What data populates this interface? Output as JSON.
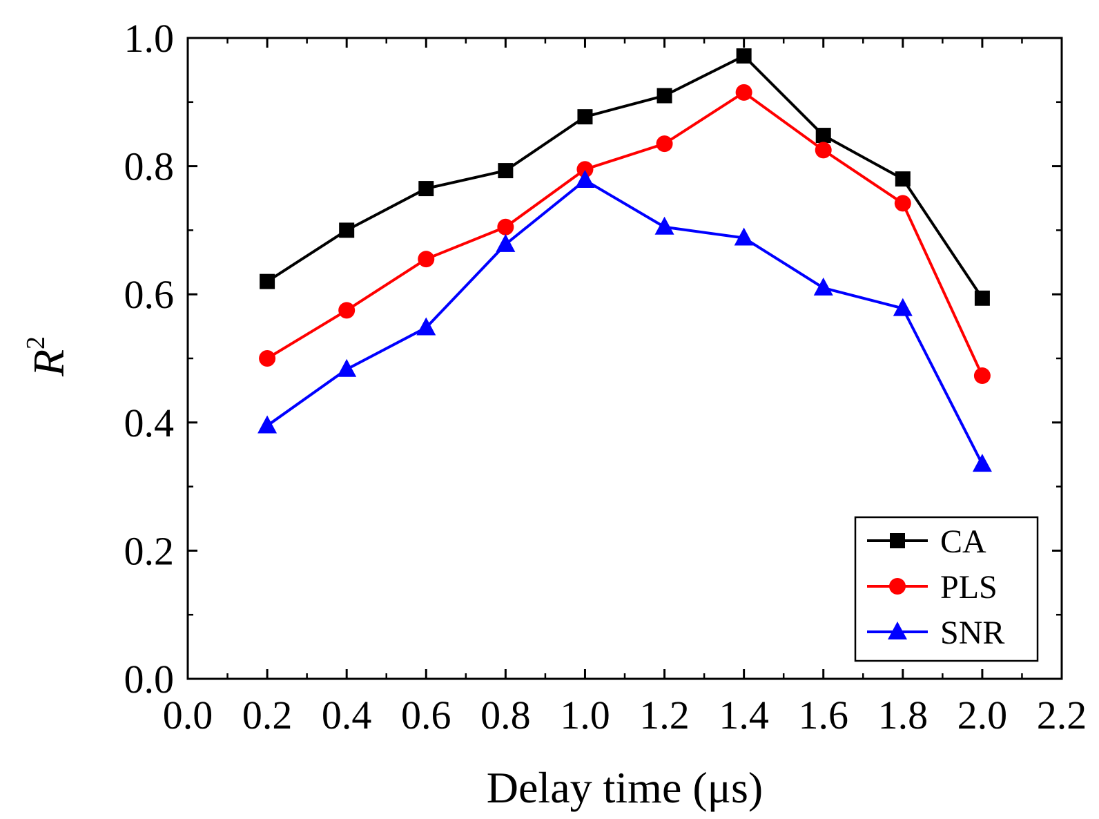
{
  "chart_data": {
    "type": "line",
    "xlabel": "Delay time (μs)",
    "ylabel": "R",
    "ylabel_superscript": "2",
    "xlim": [
      0.0,
      2.2
    ],
    "ylim": [
      0.0,
      1.0
    ],
    "x_ticks": [
      0.0,
      0.2,
      0.4,
      0.6,
      0.8,
      1.0,
      1.2,
      1.4,
      1.6,
      1.8,
      2.0,
      2.2
    ],
    "x_tick_labels": [
      "0.0",
      "0.2",
      "0.4",
      "0.6",
      "0.8",
      "1.0",
      "1.2",
      "1.4",
      "1.6",
      "1.8",
      "2.0",
      "2.2"
    ],
    "y_ticks": [
      0.0,
      0.2,
      0.4,
      0.6,
      0.8,
      1.0
    ],
    "y_tick_labels": [
      "0.0",
      "0.2",
      "0.4",
      "0.6",
      "0.8",
      "1.0"
    ],
    "grid": false,
    "legend_position": "bottom-right",
    "x": [
      0.2,
      0.4,
      0.6,
      0.8,
      1.0,
      1.2,
      1.4,
      1.6,
      1.8,
      2.0
    ],
    "series": [
      {
        "name": "CA",
        "color": "#000000",
        "marker": "square",
        "values": [
          0.62,
          0.7,
          0.765,
          0.793,
          0.877,
          0.91,
          0.972,
          0.848,
          0.78,
          0.594
        ]
      },
      {
        "name": "PLS",
        "color": "#ff0000",
        "marker": "circle",
        "values": [
          0.5,
          0.575,
          0.655,
          0.705,
          0.795,
          0.835,
          0.915,
          0.825,
          0.742,
          0.473
        ]
      },
      {
        "name": "SNR",
        "color": "#0000ff",
        "marker": "triangle",
        "values": [
          0.395,
          0.483,
          0.548,
          0.678,
          0.778,
          0.705,
          0.688,
          0.61,
          0.578,
          0.335
        ]
      }
    ]
  }
}
